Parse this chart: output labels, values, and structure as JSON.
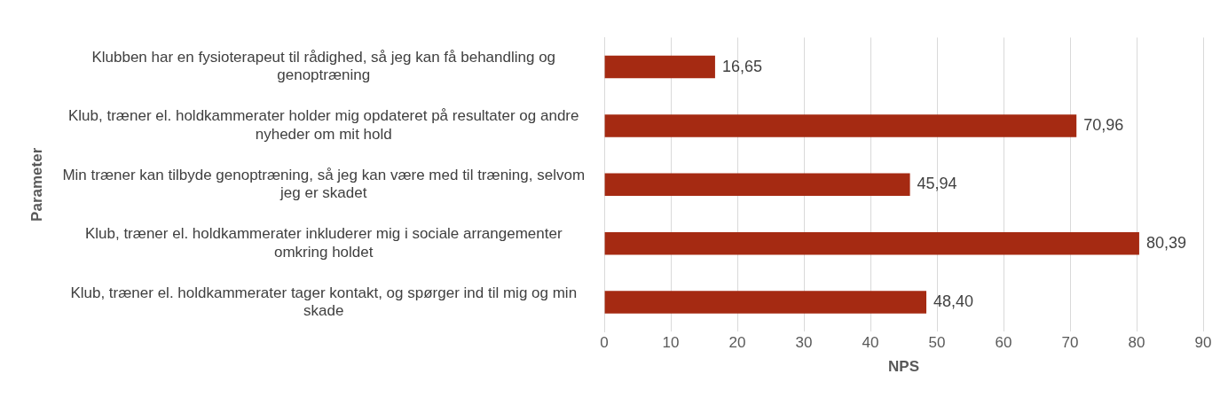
{
  "chart_data": {
    "type": "bar",
    "orientation": "horizontal",
    "xlabel": "NPS",
    "ylabel": "Parameter",
    "categories": [
      "Klubben har en fysioterapeut til rådighed, så jeg kan få behandling og genoptræning",
      "Klub, træner el. holdkammerater holder mig opdateret på resultater og andre nyheder om mit hold",
      "Min træner kan tilbyde genoptræning, så jeg kan være med til træning, selvom jeg er skadet",
      "Klub, træner el. holdkammerater inkluderer mig i sociale arrangementer omkring holdet",
      "Klub, træner el. holdkammerater tager kontakt, og spørger ind til mig og min skade"
    ],
    "values": [
      16.65,
      70.96,
      45.94,
      80.39,
      48.4
    ],
    "value_labels": [
      "16,65",
      "70,96",
      "45,94",
      "80,39",
      "48,40"
    ],
    "color": "#a52a12",
    "xlim": [
      0,
      90
    ],
    "xticks": [
      0,
      10,
      20,
      30,
      40,
      50,
      60,
      70,
      80,
      90
    ],
    "grid": "x",
    "legend": false
  }
}
